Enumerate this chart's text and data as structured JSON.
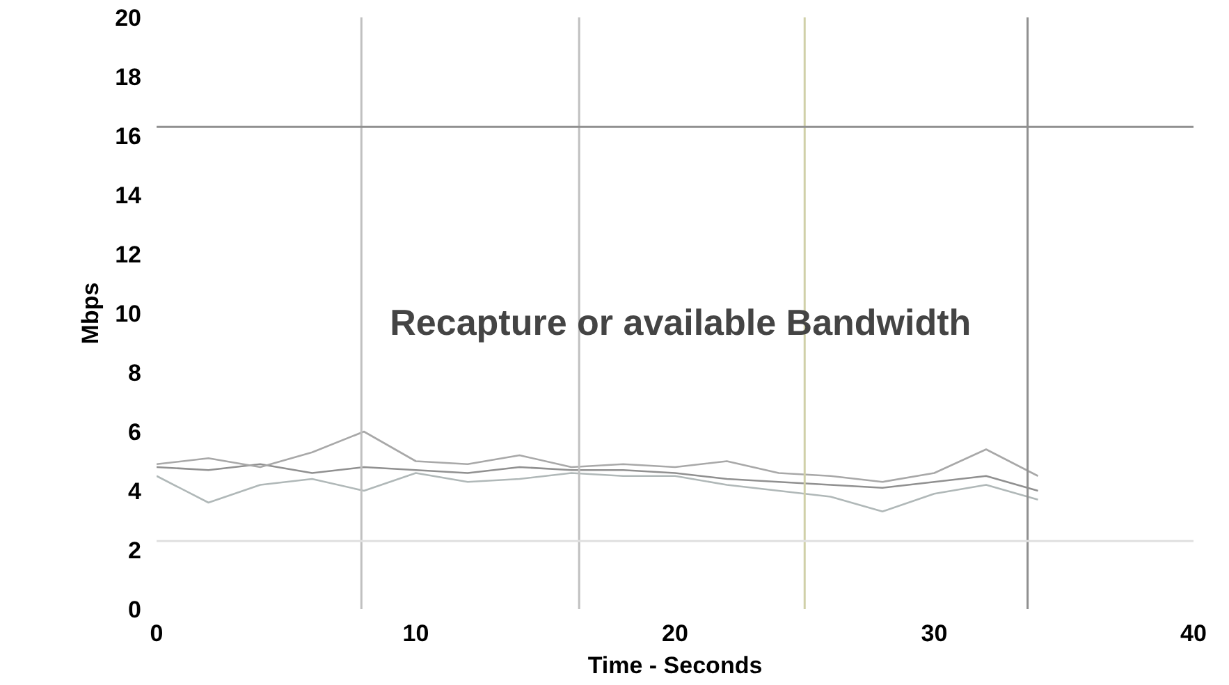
{
  "chart_data": {
    "type": "line",
    "xlabel": "Time - Seconds",
    "ylabel": "Mbps",
    "annotations": [
      "Recapture or available Bandwidth"
    ],
    "x": [
      0,
      2,
      4,
      6,
      8,
      10,
      12,
      14,
      16,
      18,
      20,
      22,
      24,
      26,
      28,
      30,
      32,
      34
    ],
    "series": [
      {
        "color": "#909090",
        "values": [
          4.8,
          4.7,
          4.9,
          4.6,
          4.8,
          4.7,
          4.6,
          4.8,
          4.7,
          4.7,
          4.6,
          4.4,
          4.3,
          4.2,
          4.1,
          4.3,
          4.5,
          4.0
        ]
      },
      {
        "color": "#a8a8a8",
        "values": [
          4.9,
          5.1,
          4.8,
          5.3,
          6.0,
          5.0,
          4.9,
          5.2,
          4.8,
          4.9,
          4.8,
          5.0,
          4.6,
          4.5,
          4.3,
          4.6,
          5.4,
          4.5
        ]
      },
      {
        "color": "#b0b8b8",
        "values": [
          4.5,
          3.6,
          4.2,
          4.4,
          4.0,
          4.6,
          4.3,
          4.4,
          4.6,
          4.5,
          4.5,
          4.2,
          4.0,
          3.8,
          3.3,
          3.9,
          4.2,
          3.7
        ]
      }
    ],
    "xlim": [
      0,
      40
    ],
    "ylim": [
      0,
      20
    ],
    "xticks": [
      0,
      10,
      20,
      30,
      40
    ],
    "yticks": [
      0,
      2,
      4,
      6,
      8,
      10,
      12,
      14,
      16,
      18,
      20
    ],
    "grid": false,
    "marker": "none",
    "line_style": "solid",
    "ref_lines": [
      {
        "axis": "x",
        "value": 7.9,
        "color": "#c0c0c0"
      },
      {
        "axis": "x",
        "value": 16.3,
        "color": "#c0c0c0"
      },
      {
        "axis": "x",
        "value": 25.0,
        "color": "#d0d0a8"
      },
      {
        "axis": "x",
        "value": 33.6,
        "color": "#909090"
      },
      {
        "axis": "y",
        "value": 16.3,
        "color": "#909090"
      },
      {
        "axis": "y",
        "value": 2.3,
        "color": "#e0e0e0"
      }
    ]
  }
}
